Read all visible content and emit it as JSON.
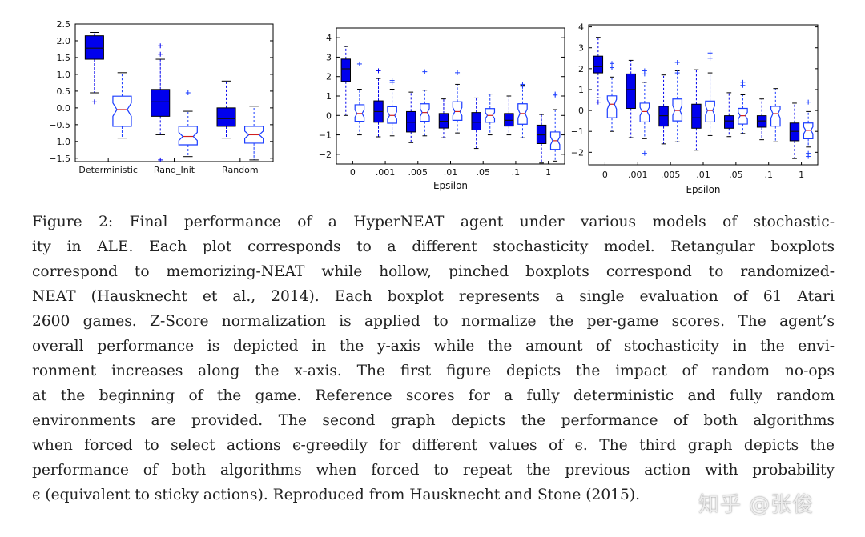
{
  "chart_data": [
    {
      "type": "boxplot",
      "title": "",
      "xlabel": "",
      "ylabel": "",
      "ylim": [
        -1.6,
        2.5
      ],
      "yticks": [
        "2.5",
        "2.0",
        "1.5",
        "1.0",
        "0.5",
        "0.0",
        "−0.5",
        "−1.0",
        "−1.5"
      ],
      "ytick_values": [
        2.5,
        2.0,
        1.5,
        1.0,
        0.5,
        0.0,
        -0.5,
        -1.0,
        -1.5
      ],
      "categories": [
        "Deterministic",
        "Rand_Init",
        "Random"
      ],
      "series": [
        {
          "name": "memorizing-NEAT",
          "style": "filled-rect",
          "color": "#0000ee",
          "boxes": [
            {
              "q1": 1.45,
              "median": 1.78,
              "q3": 2.15,
              "wlo": 0.45,
              "whi": 2.25,
              "fliers": [
                0.18
              ]
            },
            {
              "q1": -0.25,
              "median": 0.18,
              "q3": 0.55,
              "wlo": -0.8,
              "whi": 1.45,
              "fliers": [
                1.85,
                1.6,
                -1.55
              ]
            },
            {
              "q1": -0.55,
              "median": -0.32,
              "q3": 0.0,
              "wlo": -0.9,
              "whi": 0.8,
              "fliers": []
            }
          ]
        },
        {
          "name": "randomized-NEAT",
          "style": "hollow-notched",
          "color": "#1a3cff",
          "boxes": [
            {
              "q1": -0.55,
              "median": -0.05,
              "q3": 0.35,
              "wlo": -0.9,
              "whi": 1.05,
              "fliers": []
            },
            {
              "q1": -1.1,
              "median": -0.85,
              "q3": -0.55,
              "wlo": -1.45,
              "whi": -0.1,
              "fliers": [
                0.45
              ]
            },
            {
              "q1": -1.05,
              "median": -0.8,
              "q3": -0.55,
              "wlo": -1.55,
              "whi": 0.05,
              "fliers": []
            }
          ]
        }
      ]
    },
    {
      "type": "boxplot",
      "title": "",
      "xlabel": "Epsilon",
      "ylabel": "",
      "ylim": [
        -2.5,
        4.5
      ],
      "yticks": [
        "4",
        "3",
        "2",
        "1",
        "0",
        "−1",
        "−2"
      ],
      "ytick_values": [
        4,
        3,
        2,
        1,
        0,
        -1,
        -2
      ],
      "categories": [
        "0",
        ".001",
        ".005",
        ".01",
        ".05",
        ".1",
        "1"
      ],
      "series": [
        {
          "name": "memorizing-NEAT",
          "style": "filled-rect",
          "color": "#0000ee",
          "boxes": [
            {
              "q1": 1.75,
              "median": 2.4,
              "q3": 2.9,
              "wlo": 0.0,
              "whi": 3.55,
              "fliers": []
            },
            {
              "q1": -0.35,
              "median": 0.2,
              "q3": 0.75,
              "wlo": -1.1,
              "whi": 1.9,
              "fliers": [
                2.3
              ]
            },
            {
              "q1": -0.85,
              "median": -0.35,
              "q3": 0.2,
              "wlo": -1.4,
              "whi": 1.2,
              "fliers": []
            },
            {
              "q1": -0.65,
              "median": -0.3,
              "q3": 0.1,
              "wlo": -1.15,
              "whi": 0.85,
              "fliers": []
            },
            {
              "q1": -0.75,
              "median": -0.35,
              "q3": 0.15,
              "wlo": -1.7,
              "whi": 0.9,
              "fliers": []
            },
            {
              "q1": -0.55,
              "median": -0.25,
              "q3": 0.1,
              "wlo": -1.0,
              "whi": 1.0,
              "fliers": []
            },
            {
              "q1": -1.45,
              "median": -1.0,
              "q3": -0.5,
              "wlo": -2.45,
              "whi": 0.05,
              "fliers": []
            }
          ]
        },
        {
          "name": "randomized-NEAT",
          "style": "hollow-notched",
          "color": "#1a3cff",
          "boxes": [
            {
              "q1": -0.3,
              "median": 0.1,
              "q3": 0.55,
              "wlo": -1.0,
              "whi": 1.35,
              "fliers": [
                2.65
              ]
            },
            {
              "q1": -0.4,
              "median": 0.0,
              "q3": 0.45,
              "wlo": -1.05,
              "whi": 1.35,
              "fliers": [
                1.7,
                1.8
              ]
            },
            {
              "q1": -0.3,
              "median": 0.15,
              "q3": 0.6,
              "wlo": -1.05,
              "whi": 1.3,
              "fliers": [
                2.25
              ]
            },
            {
              "q1": -0.25,
              "median": 0.2,
              "q3": 0.7,
              "wlo": -0.9,
              "whi": 1.6,
              "fliers": [
                2.2
              ]
            },
            {
              "q1": -0.35,
              "median": 0.0,
              "q3": 0.35,
              "wlo": -1.0,
              "whi": 1.1,
              "fliers": []
            },
            {
              "q1": -0.45,
              "median": 0.1,
              "q3": 0.6,
              "wlo": -1.15,
              "whi": 1.55,
              "fliers": [
                1.6,
                1.5
              ]
            },
            {
              "q1": -1.75,
              "median": -1.3,
              "q3": -0.85,
              "wlo": -2.35,
              "whi": 0.3,
              "fliers": [
                1.1,
                1.05
              ]
            }
          ]
        }
      ]
    },
    {
      "type": "boxplot",
      "title": "",
      "xlabel": "Epsilon",
      "ylabel": "",
      "ylim": [
        -2.6,
        4.1
      ],
      "yticks": [
        "4",
        "3",
        "2",
        "1",
        "0",
        "−1",
        "−2"
      ],
      "ytick_values": [
        4,
        3,
        2,
        1,
        0,
        -1,
        -2
      ],
      "categories": [
        "0",
        ".001",
        ".005",
        ".01",
        ".05",
        ".1",
        "1"
      ],
      "series": [
        {
          "name": "memorizing-NEAT",
          "style": "filled-rect",
          "color": "#0000ee",
          "boxes": [
            {
              "q1": 1.8,
              "median": 2.1,
              "q3": 2.6,
              "wlo": 0.6,
              "whi": 3.5,
              "fliers": [
                0.4
              ]
            },
            {
              "q1": 0.1,
              "median": 1.0,
              "q3": 1.75,
              "wlo": -1.3,
              "whi": 2.4,
              "fliers": []
            },
            {
              "q1": -0.75,
              "median": -0.25,
              "q3": 0.2,
              "wlo": -1.6,
              "whi": 1.7,
              "fliers": []
            },
            {
              "q1": -0.85,
              "median": -0.35,
              "q3": 0.3,
              "wlo": -1.9,
              "whi": 1.95,
              "fliers": []
            },
            {
              "q1": -0.85,
              "median": -0.5,
              "q3": -0.25,
              "wlo": -1.25,
              "whi": 0.85,
              "fliers": []
            },
            {
              "q1": -0.8,
              "median": -0.5,
              "q3": -0.25,
              "wlo": -1.4,
              "whi": 0.55,
              "fliers": []
            },
            {
              "q1": -1.45,
              "median": -1.0,
              "q3": -0.6,
              "wlo": -2.3,
              "whi": 0.35,
              "fliers": []
            }
          ]
        },
        {
          "name": "randomized-NEAT",
          "style": "hollow-notched",
          "color": "#1a3cff",
          "boxes": [
            {
              "q1": -0.35,
              "median": 0.3,
              "q3": 0.7,
              "wlo": -1.0,
              "whi": 1.6,
              "fliers": [
                2.25,
                2.05
              ]
            },
            {
              "q1": -0.55,
              "median": -0.05,
              "q3": 0.35,
              "wlo": -1.35,
              "whi": 1.35,
              "fliers": [
                1.9,
                1.75,
                -2.05
              ]
            },
            {
              "q1": -0.5,
              "median": 0.0,
              "q3": 0.55,
              "wlo": -1.5,
              "whi": 1.9,
              "fliers": [
                2.3,
                1.8
              ]
            },
            {
              "q1": -0.55,
              "median": 0.0,
              "q3": 0.45,
              "wlo": -1.2,
              "whi": 1.8,
              "fliers": [
                2.75,
                2.5
              ]
            },
            {
              "q1": -0.65,
              "median": -0.25,
              "q3": 0.1,
              "wlo": -1.1,
              "whi": 0.75,
              "fliers": [
                1.35,
                1.2
              ]
            },
            {
              "q1": -0.75,
              "median": -0.15,
              "q3": 0.2,
              "wlo": -1.5,
              "whi": 1.05,
              "fliers": []
            },
            {
              "q1": -1.35,
              "median": -0.95,
              "q3": -0.6,
              "wlo": -1.75,
              "whi": -0.05,
              "fliers": [
                0.4,
                -2.05,
                -2.2
              ]
            }
          ]
        }
      ]
    }
  ],
  "caption": {
    "lines": [
      "Figure 2: Final performance of a HyperNEAT agent under various models of stochastic-",
      "ity in ALE. Each plot corresponds to a different stochasticity model. Retangular boxplots",
      "correspond to memorizing-NEAT while hollow, pinched boxplots correspond to randomized-",
      "NEAT (Hausknecht et al., 2014). Each boxplot represents a single evaluation of 61 Atari",
      "2600 games. Z-Score normalization is applied to normalize the per-game scores. The agent’s",
      "overall performance is depicted in the y-axis while the amount of stochasticity in the envi-",
      "ronment increases along the x-axis. The first figure depicts the impact of random no-ops",
      "at the beginning of the game. Reference scores for a fully deterministic and fully random",
      "environments are provided. The second graph depicts the performance of both algorithms",
      "when forced to select actions ϵ-greedily for different values of ϵ. The third graph depicts the",
      "performance of both algorithms when forced to repeat the previous action with probability",
      "ϵ (equivalent to sticky actions). Reproduced from Hausknecht and Stone (2015)."
    ]
  },
  "watermark": "知乎 @张俊"
}
